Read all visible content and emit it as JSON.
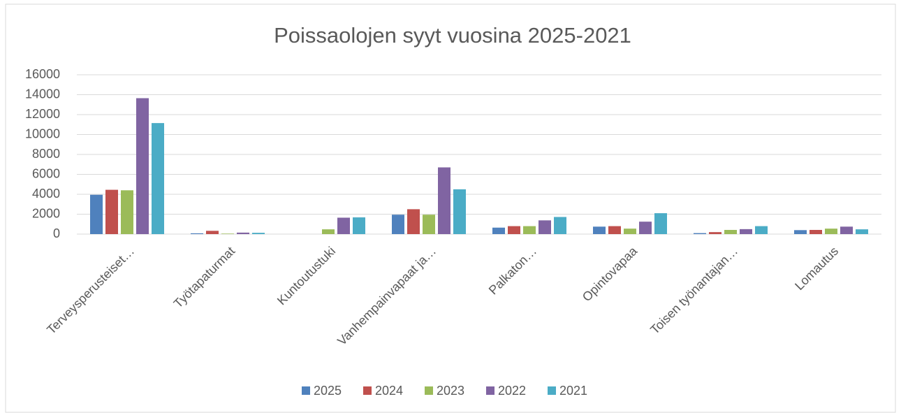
{
  "chart_data": {
    "type": "bar",
    "title": "Poissaolojen syyt vuosina 2025-2021",
    "categories": [
      "Terveysperusteiset…",
      "Työtapaturmat",
      "Kuntoutustuki",
      "Vanhempainvapaat ja…",
      "Palkaton…",
      "Opintovapaa",
      "Toisen työnantajan…",
      "Lomautus"
    ],
    "series": [
      {
        "name": "2025",
        "color": "#4f81bd",
        "values": [
          3950,
          80,
          0,
          1950,
          650,
          750,
          100,
          400
        ]
      },
      {
        "name": "2024",
        "color": "#c0504d",
        "values": [
          4450,
          330,
          0,
          2500,
          800,
          800,
          200,
          420
        ]
      },
      {
        "name": "2023",
        "color": "#9bbb59",
        "values": [
          4400,
          50,
          480,
          1950,
          800,
          550,
          420,
          550
        ]
      },
      {
        "name": "2022",
        "color": "#8064a2",
        "values": [
          13650,
          150,
          1650,
          6700,
          1380,
          1250,
          500,
          750
        ]
      },
      {
        "name": "2021",
        "color": "#4bacc6",
        "values": [
          11150,
          130,
          1680,
          4500,
          1720,
          2100,
          800,
          480
        ]
      }
    ],
    "ylim": [
      0,
      16000
    ],
    "yticks": [
      0,
      2000,
      4000,
      6000,
      8000,
      10000,
      12000,
      14000,
      16000
    ],
    "grid": true,
    "legend": "bottom"
  }
}
